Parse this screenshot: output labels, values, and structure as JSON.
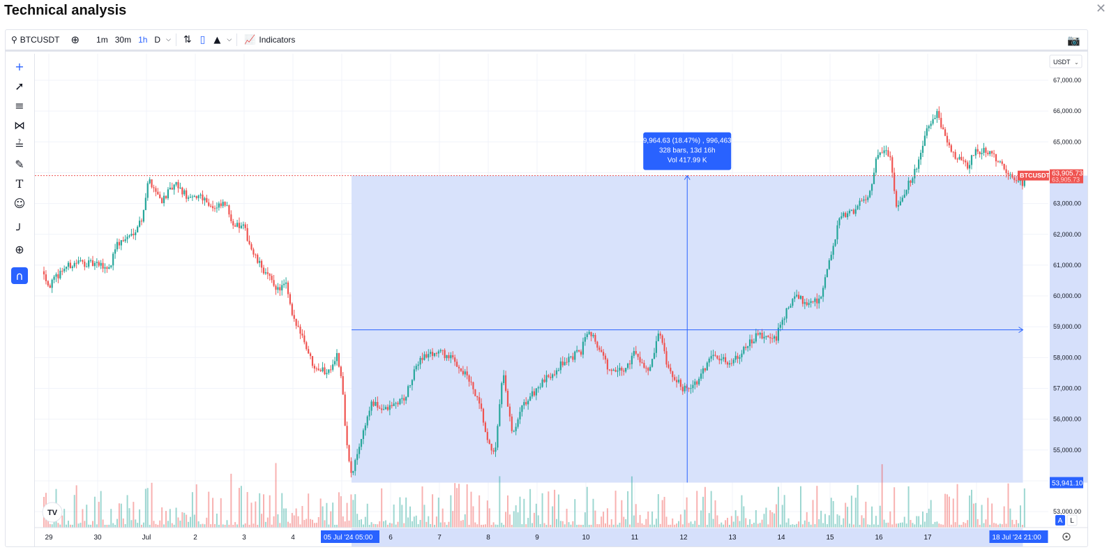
{
  "panel": {
    "title": "Technical analysis"
  },
  "toolbar": {
    "symbol": "BTCUSDT",
    "intervals": [
      {
        "label": "1m",
        "active": false
      },
      {
        "label": "30m",
        "active": false
      },
      {
        "label": "1h",
        "active": true
      },
      {
        "label": "D",
        "active": false
      }
    ],
    "indicators_label": "Indicators"
  },
  "price_axis": {
    "currency": "USDT",
    "labels": [
      "67,000.00",
      "66,000.00",
      "65,000.00",
      "64,000.00",
      "63,000.00",
      "62,000.00",
      "61,000.00",
      "60,000.00",
      "59,000.00",
      "58,000.00",
      "57,000.00",
      "56,000.00",
      "55,000.00",
      "54,000.00",
      "53,000.00"
    ],
    "current_price_badge": "63,905.73",
    "current_price_sub": "63,905.73",
    "symbol_badge": "BTCUSDT",
    "range_low_badge": "53,941.10"
  },
  "time_axis": {
    "labels": [
      "29",
      "30",
      "Jul",
      "2",
      "3",
      "4",
      "5",
      "6",
      "7",
      "8",
      "9",
      "10",
      "11",
      "12",
      "13",
      "14",
      "15",
      "16",
      "17",
      "18"
    ],
    "range_start_badge": "05 Jul '24  05:00",
    "range_end_badge": "18 Jul '24  21:00"
  },
  "measure": {
    "line1": "9,964.63 (18.47%) , 996,463",
    "line2": "328 bars, 13d 16h",
    "line3": "Vol 417.99 K"
  },
  "scale_buttons": {
    "auto": "A",
    "log": "L"
  },
  "brand_logo": "TV",
  "colors": {
    "up": "#26a69a",
    "down": "#ef5350",
    "accent": "#2962ff",
    "range_fill": "#d6e0fb"
  },
  "chart_data": {
    "type": "candlestick",
    "interval": "1h",
    "ylim": [
      52600,
      67400
    ],
    "x_start": "29 Jun",
    "x_end": "18 Jul",
    "close_path": [
      {
        "day": 28.9,
        "price": 60800
      },
      {
        "day": 29.0,
        "price": 60300
      },
      {
        "day": 29.3,
        "price": 60900
      },
      {
        "day": 29.6,
        "price": 61100
      },
      {
        "day": 30.0,
        "price": 61000
      },
      {
        "day": 30.25,
        "price": 60900
      },
      {
        "day": 30.35,
        "price": 61600
      },
      {
        "day": 30.7,
        "price": 62000
      },
      {
        "day": 30.9,
        "price": 62500
      },
      {
        "day": 31.05,
        "price": 63800
      },
      {
        "day": 31.3,
        "price": 63100
      },
      {
        "day": 31.6,
        "price": 63600
      },
      {
        "day": 31.9,
        "price": 63100
      },
      {
        "day": 32.1,
        "price": 63300
      },
      {
        "day": 32.4,
        "price": 62800
      },
      {
        "day": 32.6,
        "price": 63000
      },
      {
        "day": 32.8,
        "price": 62300
      },
      {
        "day": 33.0,
        "price": 62200
      },
      {
        "day": 33.2,
        "price": 61300
      },
      {
        "day": 33.5,
        "price": 60600
      },
      {
        "day": 33.7,
        "price": 60200
      },
      {
        "day": 33.85,
        "price": 60400
      },
      {
        "day": 34.0,
        "price": 59200
      },
      {
        "day": 34.15,
        "price": 58900
      },
      {
        "day": 34.4,
        "price": 57800
      },
      {
        "day": 34.7,
        "price": 57500
      },
      {
        "day": 34.9,
        "price": 58100
      },
      {
        "day": 35.0,
        "price": 57200
      },
      {
        "day": 35.1,
        "price": 55200
      },
      {
        "day": 35.2,
        "price": 54100
      },
      {
        "day": 35.35,
        "price": 55100
      },
      {
        "day": 35.6,
        "price": 56500
      },
      {
        "day": 35.9,
        "price": 56300
      },
      {
        "day": 36.3,
        "price": 56700
      },
      {
        "day": 36.6,
        "price": 58000
      },
      {
        "day": 37.0,
        "price": 58200
      },
      {
        "day": 37.3,
        "price": 57900
      },
      {
        "day": 37.6,
        "price": 57300
      },
      {
        "day": 37.85,
        "price": 56300
      },
      {
        "day": 38.0,
        "price": 55100
      },
      {
        "day": 38.15,
        "price": 55000
      },
      {
        "day": 38.3,
        "price": 57500
      },
      {
        "day": 38.5,
        "price": 55400
      },
      {
        "day": 38.7,
        "price": 56400
      },
      {
        "day": 39.0,
        "price": 57000
      },
      {
        "day": 39.5,
        "price": 57800
      },
      {
        "day": 39.9,
        "price": 58200
      },
      {
        "day": 40.05,
        "price": 59000
      },
      {
        "day": 40.3,
        "price": 58200
      },
      {
        "day": 40.5,
        "price": 57500
      },
      {
        "day": 40.8,
        "price": 57600
      },
      {
        "day": 41.0,
        "price": 58200
      },
      {
        "day": 41.3,
        "price": 57500
      },
      {
        "day": 41.5,
        "price": 58800
      },
      {
        "day": 41.7,
        "price": 57500
      },
      {
        "day": 42.0,
        "price": 57000
      },
      {
        "day": 42.3,
        "price": 57200
      },
      {
        "day": 42.6,
        "price": 58200
      },
      {
        "day": 42.9,
        "price": 57800
      },
      {
        "day": 43.2,
        "price": 58200
      },
      {
        "day": 43.5,
        "price": 58700
      },
      {
        "day": 43.9,
        "price": 58600
      },
      {
        "day": 44.0,
        "price": 59200
      },
      {
        "day": 44.3,
        "price": 60000
      },
      {
        "day": 44.5,
        "price": 59800
      },
      {
        "day": 44.8,
        "price": 59900
      },
      {
        "day": 45.0,
        "price": 61200
      },
      {
        "day": 45.2,
        "price": 62500
      },
      {
        "day": 45.5,
        "price": 62800
      },
      {
        "day": 45.8,
        "price": 63300
      },
      {
        "day": 46.0,
        "price": 64800
      },
      {
        "day": 46.25,
        "price": 64500
      },
      {
        "day": 46.35,
        "price": 62900
      },
      {
        "day": 46.6,
        "price": 63600
      },
      {
        "day": 46.85,
        "price": 64500
      },
      {
        "day": 47.0,
        "price": 65500
      },
      {
        "day": 47.2,
        "price": 65900
      },
      {
        "day": 47.4,
        "price": 64900
      },
      {
        "day": 47.6,
        "price": 64500
      },
      {
        "day": 47.8,
        "price": 64200
      },
      {
        "day": 48.0,
        "price": 64700
      },
      {
        "day": 48.3,
        "price": 64700
      },
      {
        "day": 48.6,
        "price": 64000
      },
      {
        "day": 48.8,
        "price": 63800
      },
      {
        "day": 48.95,
        "price": 63600
      },
      {
        "day": 49.0,
        "price": 63900
      }
    ]
  }
}
